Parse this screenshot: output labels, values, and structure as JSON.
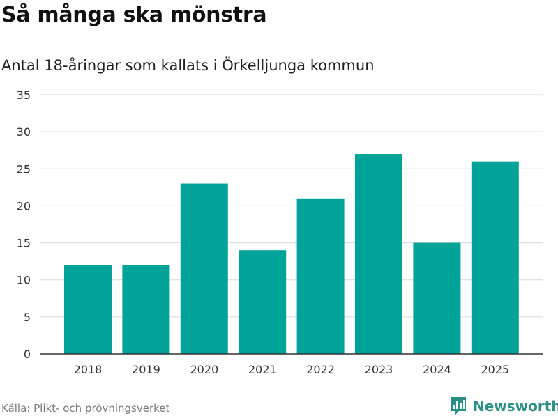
{
  "title": "Så många ska mönstra",
  "subtitle": "Antal 18-åringar som kallats i Örkelljunga kommun",
  "source": "Källa: Plikt- och prövningsverket",
  "brand": {
    "name": "Newsworthy",
    "icon": "bar-chart-logo-icon",
    "color": "#2a8f86"
  },
  "colors": {
    "bar": "#00a398",
    "grid": "#d9d9d9",
    "axis": "#333333"
  },
  "chart_data": {
    "type": "bar",
    "categories": [
      "2018",
      "2019",
      "2020",
      "2021",
      "2022",
      "2023",
      "2024",
      "2025"
    ],
    "values": [
      12,
      12,
      23,
      14,
      21,
      27,
      15,
      26
    ],
    "ylim": [
      0,
      35
    ],
    "yticks": [
      0,
      5,
      10,
      15,
      20,
      25,
      30,
      35
    ],
    "grid": true,
    "legend": "none"
  }
}
